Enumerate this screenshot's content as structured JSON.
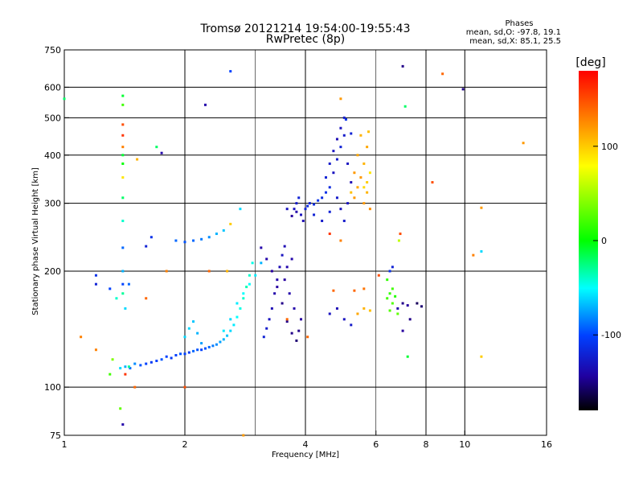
{
  "chart_data": {
    "type": "scatter",
    "title": "Tromsø 20121214 19:54:00-19:55:43",
    "subtitle": "RwPretec (8p)",
    "xlabel": "Frequency [MHz]",
    "ylabel": "Stationary phase Virtual Height [km]",
    "x_scale": "log",
    "y_scale": "log",
    "xlim": [
      1,
      16
    ],
    "ylim": [
      75,
      750
    ],
    "x_ticks": [
      1,
      2,
      4,
      6,
      8,
      10,
      16
    ],
    "x_tick_labels": [
      "1",
      "2",
      "4",
      "6",
      "8",
      "10",
      "16"
    ],
    "y_ticks": [
      75,
      100,
      200,
      300,
      400,
      500,
      600,
      750
    ],
    "y_tick_labels": [
      "75",
      "100",
      "200",
      "300",
      "400",
      "500",
      "600",
      "750"
    ],
    "x_gridlines": [
      2,
      4,
      8,
      10
    ],
    "y_gridlines": [
      100,
      200,
      300,
      400,
      500,
      600
    ],
    "minor_x_gridlines": [
      3,
      6
    ],
    "stats": {
      "heading": "Phases",
      "line_o": "mean, sd,O: -97.8, 19.1",
      "line_x": "mean, sd,X:  85.1, 25.5"
    },
    "colorbar": {
      "label": "[deg]",
      "range": [
        -180,
        180
      ],
      "ticks": [
        100,
        0,
        -100
      ],
      "tick_labels": [
        "100",
        "0",
        "-100"
      ],
      "colors": [
        "#ff0000",
        "#ff8000",
        "#ffff00",
        "#00ff00",
        "#00ffff",
        "#0040ff",
        "#2000a0",
        "#000000"
      ]
    },
    "points": [
      [
        1.38,
        112,
        -60
      ],
      [
        1.42,
        113,
        -70
      ],
      [
        1.46,
        112,
        -90
      ],
      [
        1.5,
        115,
        -80
      ],
      [
        1.55,
        114,
        -95
      ],
      [
        1.6,
        115,
        -100
      ],
      [
        1.65,
        116,
        -105
      ],
      [
        1.7,
        117,
        -100
      ],
      [
        1.75,
        118,
        -95
      ],
      [
        1.8,
        120,
        -100
      ],
      [
        1.85,
        119,
        -105
      ],
      [
        1.9,
        121,
        -100
      ],
      [
        1.95,
        122,
        -95
      ],
      [
        2.0,
        122,
        -100
      ],
      [
        2.05,
        123,
        -105
      ],
      [
        2.1,
        124,
        -90
      ],
      [
        2.15,
        125,
        -95
      ],
      [
        2.2,
        125,
        -100
      ],
      [
        2.25,
        126,
        -95
      ],
      [
        2.3,
        127,
        -90
      ],
      [
        2.35,
        128,
        -85
      ],
      [
        2.4,
        129,
        -80
      ],
      [
        2.45,
        131,
        -75
      ],
      [
        2.5,
        133,
        -70
      ],
      [
        2.55,
        136,
        -65
      ],
      [
        2.6,
        140,
        -60
      ],
      [
        2.65,
        145,
        -55
      ],
      [
        2.7,
        152,
        -50
      ],
      [
        2.75,
        160,
        -45
      ],
      [
        2.8,
        170,
        -40
      ],
      [
        2.85,
        182,
        -35
      ],
      [
        2.9,
        195,
        -40
      ],
      [
        2.95,
        210,
        -45
      ],
      [
        2.0,
        135,
        -60
      ],
      [
        2.05,
        142,
        -60
      ],
      [
        2.1,
        148,
        -65
      ],
      [
        2.15,
        138,
        -70
      ],
      [
        2.2,
        130,
        -75
      ],
      [
        2.5,
        140,
        -55
      ],
      [
        2.6,
        150,
        -60
      ],
      [
        2.7,
        165,
        -55
      ],
      [
        2.8,
        175,
        -50
      ],
      [
        2.9,
        185,
        -50
      ],
      [
        3.0,
        195,
        -55
      ],
      [
        3.1,
        210,
        -70
      ],
      [
        3.15,
        135,
        -120
      ],
      [
        3.2,
        142,
        -125
      ],
      [
        3.25,
        150,
        -130
      ],
      [
        3.3,
        160,
        -135
      ],
      [
        3.35,
        175,
        -140
      ],
      [
        3.4,
        190,
        -140
      ],
      [
        3.45,
        205,
        -135
      ],
      [
        3.5,
        220,
        -130
      ],
      [
        3.55,
        232,
        -135
      ],
      [
        3.1,
        230,
        -140
      ],
      [
        3.2,
        215,
        -140
      ],
      [
        3.3,
        200,
        -145
      ],
      [
        3.4,
        182,
        -145
      ],
      [
        3.5,
        165,
        -150
      ],
      [
        3.6,
        148,
        -150
      ],
      [
        3.7,
        138,
        -150
      ],
      [
        3.8,
        132,
        -155
      ],
      [
        3.85,
        140,
        -150
      ],
      [
        3.9,
        150,
        -145
      ],
      [
        3.75,
        160,
        -140
      ],
      [
        3.65,
        175,
        -140
      ],
      [
        3.55,
        190,
        -145
      ],
      [
        3.6,
        205,
        -140
      ],
      [
        3.7,
        215,
        -140
      ],
      [
        3.75,
        290,
        -130
      ],
      [
        3.8,
        300,
        -125
      ],
      [
        3.85,
        310,
        -120
      ],
      [
        3.9,
        280,
        -130
      ],
      [
        3.95,
        270,
        -135
      ],
      [
        3.8,
        285,
        -140
      ],
      [
        3.7,
        278,
        -145
      ],
      [
        3.6,
        290,
        -130
      ],
      [
        4.0,
        290,
        -120
      ],
      [
        4.05,
        295,
        -115
      ],
      [
        4.1,
        300,
        -120
      ],
      [
        4.2,
        298,
        -115
      ],
      [
        4.3,
        305,
        -110
      ],
      [
        4.4,
        310,
        -115
      ],
      [
        4.5,
        320,
        -110
      ],
      [
        4.6,
        330,
        -115
      ],
      [
        4.2,
        280,
        -120
      ],
      [
        4.4,
        270,
        -125
      ],
      [
        4.6,
        285,
        -120
      ],
      [
        4.5,
        350,
        -120
      ],
      [
        4.6,
        380,
        -125
      ],
      [
        4.7,
        410,
        -130
      ],
      [
        4.8,
        440,
        -135
      ],
      [
        4.9,
        470,
        -130
      ],
      [
        5.0,
        500,
        -125
      ],
      [
        4.7,
        360,
        -130
      ],
      [
        4.8,
        390,
        -125
      ],
      [
        4.9,
        420,
        -120
      ],
      [
        5.0,
        450,
        -125
      ],
      [
        5.1,
        380,
        -130
      ],
      [
        5.2,
        340,
        -135
      ],
      [
        5.1,
        300,
        -130
      ],
      [
        5.0,
        270,
        -125
      ],
      [
        4.9,
        290,
        -130
      ],
      [
        4.8,
        310,
        -125
      ],
      [
        5.3,
        310,
        120
      ],
      [
        5.4,
        330,
        115
      ],
      [
        5.5,
        350,
        120
      ],
      [
        5.6,
        380,
        110
      ],
      [
        5.7,
        420,
        115
      ],
      [
        5.75,
        460,
        105
      ],
      [
        5.6,
        300,
        120
      ],
      [
        5.7,
        320,
        110
      ],
      [
        5.8,
        290,
        125
      ],
      [
        5.5,
        450,
        110
      ],
      [
        5.4,
        400,
        115
      ],
      [
        5.3,
        360,
        120
      ],
      [
        5.2,
        320,
        105
      ],
      [
        5.6,
        330,
        95
      ],
      [
        5.7,
        340,
        100
      ],
      [
        5.8,
        360,
        90
      ],
      [
        4.6,
        155,
        -130
      ],
      [
        4.8,
        160,
        -135
      ],
      [
        5.0,
        150,
        -130
      ],
      [
        5.2,
        145,
        -125
      ],
      [
        5.4,
        155,
        115
      ],
      [
        5.6,
        160,
        110
      ],
      [
        5.8,
        158,
        105
      ],
      [
        4.7,
        178,
        140
      ],
      [
        5.3,
        178,
        140
      ],
      [
        5.6,
        180,
        135
      ],
      [
        6.4,
        170,
        20
      ],
      [
        6.5,
        175,
        15
      ],
      [
        6.6,
        165,
        25
      ],
      [
        6.7,
        172,
        10
      ],
      [
        6.6,
        180,
        20
      ],
      [
        6.5,
        158,
        25
      ],
      [
        6.4,
        190,
        15
      ],
      [
        6.8,
        155,
        30
      ],
      [
        6.5,
        200,
        -110
      ],
      [
        6.6,
        205,
        -120
      ],
      [
        6.8,
        160,
        -140
      ],
      [
        7.0,
        165,
        -150
      ],
      [
        7.2,
        163,
        -145
      ],
      [
        7.6,
        165,
        -160
      ],
      [
        7.8,
        162,
        -155
      ],
      [
        7.3,
        150,
        -150
      ],
      [
        7.0,
        140,
        -145
      ],
      [
        1.4,
        570,
        -10
      ],
      [
        1.4,
        540,
        20
      ],
      [
        1.4,
        480,
        150
      ],
      [
        1.4,
        450,
        160
      ],
      [
        1.4,
        420,
        130
      ],
      [
        1.4,
        400,
        -10
      ],
      [
        1.4,
        380,
        0
      ],
      [
        1.4,
        350,
        90
      ],
      [
        1.4,
        310,
        -20
      ],
      [
        1.4,
        270,
        -40
      ],
      [
        1.4,
        230,
        -90
      ],
      [
        1.4,
        200,
        -70
      ],
      [
        1.4,
        185,
        -100
      ],
      [
        1.4,
        175,
        -30
      ],
      [
        1.42,
        160,
        -60
      ],
      [
        1.0,
        560,
        -20
      ],
      [
        1.52,
        390,
        110
      ],
      [
        1.7,
        420,
        -20
      ],
      [
        1.75,
        405,
        -140
      ],
      [
        2.25,
        540,
        -140
      ],
      [
        2.6,
        660,
        -100
      ],
      [
        1.9,
        240,
        -90
      ],
      [
        2.0,
        238,
        -95
      ],
      [
        2.1,
        240,
        -90
      ],
      [
        2.2,
        242,
        -85
      ],
      [
        2.3,
        245,
        -80
      ],
      [
        2.4,
        250,
        -70
      ],
      [
        2.5,
        255,
        -65
      ],
      [
        2.6,
        265,
        100
      ],
      [
        2.75,
        290,
        -60
      ],
      [
        1.65,
        245,
        -110
      ],
      [
        1.6,
        232,
        -120
      ],
      [
        1.45,
        185,
        -90
      ],
      [
        1.2,
        195,
        -110
      ],
      [
        1.2,
        185,
        -120
      ],
      [
        1.3,
        180,
        -100
      ],
      [
        1.35,
        170,
        -40
      ],
      [
        1.2,
        125,
        130
      ],
      [
        1.3,
        108,
        20
      ],
      [
        1.32,
        118,
        40
      ],
      [
        1.1,
        135,
        130
      ],
      [
        1.4,
        80,
        -140
      ],
      [
        1.42,
        108,
        160
      ],
      [
        1.45,
        113,
        -30
      ],
      [
        1.38,
        88,
        30
      ],
      [
        1.5,
        100,
        140
      ],
      [
        2.0,
        100,
        150
      ],
      [
        2.3,
        200,
        140
      ],
      [
        2.55,
        200,
        110
      ],
      [
        1.8,
        200,
        130
      ],
      [
        1.6,
        170,
        140
      ],
      [
        2.8,
        75,
        120
      ],
      [
        4.9,
        560,
        120
      ],
      [
        4.9,
        240,
        130
      ],
      [
        5.05,
        495,
        -110
      ],
      [
        5.2,
        455,
        -120
      ],
      [
        6.9,
        250,
        150
      ],
      [
        6.85,
        240,
        60
      ],
      [
        7.0,
        680,
        -150
      ],
      [
        7.1,
        535,
        -20
      ],
      [
        8.3,
        340,
        150
      ],
      [
        8.8,
        650,
        140
      ],
      [
        9.9,
        593,
        -150
      ],
      [
        10.5,
        220,
        130
      ],
      [
        11.0,
        225,
        -60
      ],
      [
        11.0,
        292,
        120
      ],
      [
        11.0,
        120,
        100
      ],
      [
        7.2,
        120,
        -10
      ],
      [
        14.0,
        430,
        120
      ],
      [
        3.6,
        150,
        140
      ],
      [
        4.05,
        135,
        140
      ],
      [
        4.6,
        250,
        160
      ],
      [
        6.1,
        195,
        150
      ]
    ]
  }
}
